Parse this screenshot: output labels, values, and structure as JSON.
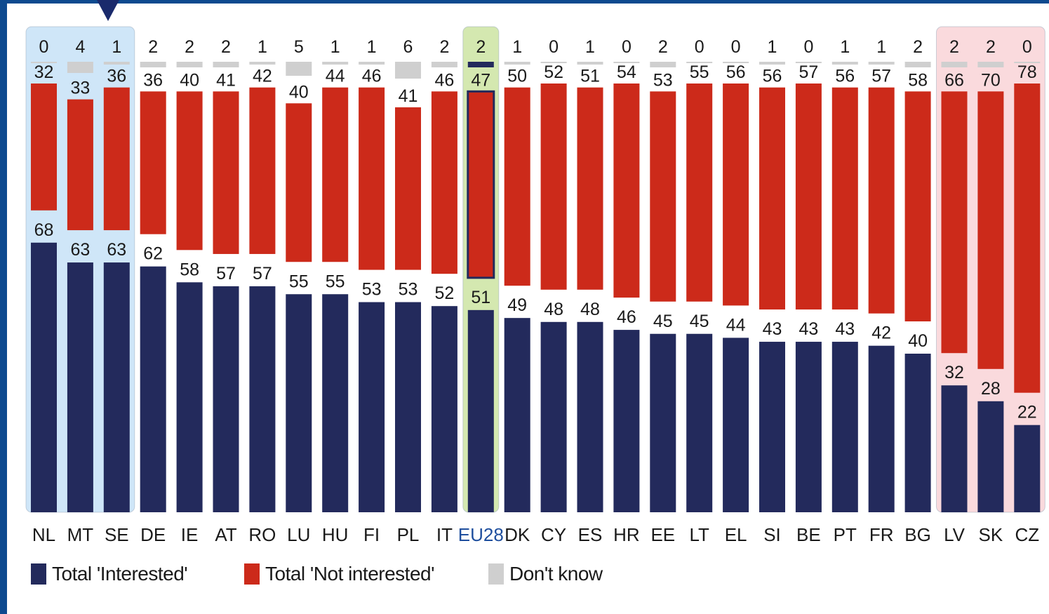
{
  "colors": {
    "interested": "#232a5c",
    "not_interested": "#cc2a1a",
    "dont_know": "#cfcfcf",
    "highlight_top": "#cfe6f8",
    "highlight_eu": "#d4e8b0",
    "highlight_bottom": "#fadadd",
    "frame": "#0d4a8f",
    "eu_label": "#1f4f9e"
  },
  "legend": {
    "interested": "Total 'Interested'",
    "not_interested": "Total 'Not interested'",
    "dont_know": "Don't know"
  },
  "chart_data": {
    "type": "bar",
    "stacked": true,
    "categories": [
      "NL",
      "MT",
      "SE",
      "DE",
      "IE",
      "AT",
      "RO",
      "LU",
      "HU",
      "FI",
      "PL",
      "IT",
      "EU28",
      "DK",
      "CY",
      "ES",
      "HR",
      "EE",
      "LT",
      "EL",
      "SI",
      "BE",
      "PT",
      "FR",
      "BG",
      "LV",
      "SK",
      "CZ"
    ],
    "series": [
      {
        "name": "Total 'Interested'",
        "values": [
          68,
          63,
          63,
          62,
          58,
          57,
          57,
          55,
          55,
          53,
          53,
          52,
          51,
          49,
          48,
          48,
          46,
          45,
          45,
          44,
          43,
          43,
          43,
          42,
          40,
          32,
          28,
          22
        ]
      },
      {
        "name": "Total 'Not interested'",
        "values": [
          32,
          33,
          36,
          36,
          40,
          41,
          42,
          40,
          44,
          46,
          41,
          46,
          47,
          50,
          52,
          51,
          54,
          53,
          55,
          56,
          56,
          57,
          56,
          57,
          58,
          66,
          70,
          78
        ]
      },
      {
        "name": "Don't know",
        "values": [
          0,
          4,
          1,
          2,
          2,
          2,
          1,
          5,
          1,
          1,
          6,
          2,
          2,
          1,
          0,
          1,
          0,
          2,
          0,
          0,
          1,
          0,
          1,
          1,
          2,
          2,
          2,
          0
        ]
      }
    ],
    "highlight_groups": [
      {
        "from": "NL",
        "to": "SE",
        "color": "highlight_top"
      },
      {
        "from": "EU28",
        "to": "EU28",
        "color": "highlight_eu"
      },
      {
        "from": "LV",
        "to": "CZ",
        "color": "highlight_bottom"
      }
    ],
    "ylim": [
      0,
      100
    ],
    "grid": false,
    "legend_position": "bottom-left"
  }
}
